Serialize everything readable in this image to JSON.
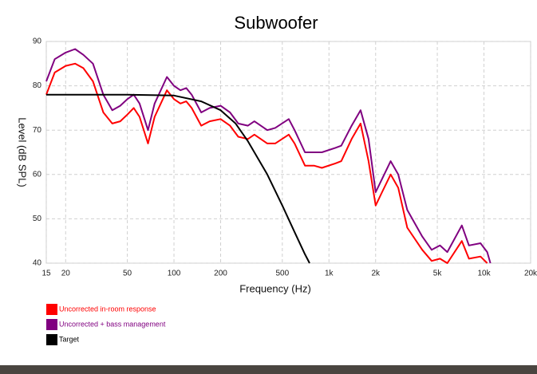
{
  "chart_data": {
    "type": "line",
    "title": "Subwoofer",
    "x_label": "Frequency (Hz)",
    "y_label": "Level (dB SPL)",
    "log_x": true,
    "grid": true,
    "xlim": [
      15,
      20000
    ],
    "ylim": [
      40,
      90
    ],
    "xticks": [
      15,
      20,
      50,
      100,
      200,
      500,
      {
        "value": 1000,
        "label": "1k"
      },
      {
        "value": 2000,
        "label": "2k"
      },
      {
        "value": 5000,
        "label": "5k"
      },
      {
        "value": 10000,
        "label": "10k"
      },
      {
        "value": 20000,
        "label": "20k"
      }
    ],
    "yticks": [
      40,
      50,
      60,
      70,
      80,
      90
    ],
    "series": [
      {
        "name": "Uncorrected in-room response",
        "color": "#ff0000",
        "x": [
          15,
          17,
          20,
          23,
          26,
          30,
          35,
          40,
          45,
          50,
          55,
          60,
          68,
          75,
          90,
          100,
          110,
          120,
          130,
          150,
          170,
          200,
          230,
          260,
          300,
          330,
          400,
          450,
          550,
          600,
          700,
          800,
          900,
          1100,
          1200,
          1400,
          1600,
          1800,
          2000,
          2200,
          2500,
          2800,
          3200,
          4000,
          4600,
          5200,
          5800,
          7200,
          8000,
          9500,
          10500
        ],
        "values": [
          78,
          83,
          84.5,
          85,
          84,
          81,
          74,
          71.5,
          72,
          73.5,
          75,
          73,
          67,
          73,
          79,
          77,
          76,
          76.5,
          75,
          71,
          72,
          72.5,
          71,
          68.5,
          68,
          69,
          67,
          67,
          69,
          67,
          62,
          62,
          61.5,
          62.5,
          63,
          68,
          71.5,
          63,
          53,
          56,
          60,
          57,
          48,
          43,
          40.5,
          41,
          40,
          45,
          41,
          41.5,
          40
        ]
      },
      {
        "name": "Uncorrected + bass management",
        "color": "#800080",
        "x": [
          15,
          17,
          20,
          23,
          26,
          30,
          35,
          40,
          45,
          50,
          55,
          60,
          68,
          75,
          90,
          100,
          110,
          120,
          130,
          150,
          170,
          200,
          230,
          260,
          300,
          330,
          400,
          450,
          550,
          600,
          700,
          800,
          900,
          1100,
          1200,
          1400,
          1600,
          1800,
          2000,
          2200,
          2500,
          2800,
          3200,
          4000,
          4600,
          5200,
          5800,
          7200,
          8000,
          9500,
          10500,
          11000
        ],
        "values": [
          81,
          86,
          87.5,
          88.3,
          87,
          85,
          78,
          74.5,
          75.5,
          77,
          78,
          76,
          70,
          76,
          82,
          80,
          79,
          79.5,
          78,
          74,
          75,
          75.5,
          74,
          71.5,
          71,
          72,
          70,
          70.5,
          72.5,
          70,
          65,
          65,
          65,
          66,
          66.5,
          71,
          74.5,
          68,
          56,
          59,
          63,
          60,
          52,
          46,
          43,
          44,
          42.5,
          48.5,
          44,
          44.5,
          42.5,
          40
        ]
      },
      {
        "name": "Target",
        "color": "#000000",
        "x": [
          15,
          50,
          100,
          150,
          200,
          250,
          300,
          400,
          500,
          600,
          700,
          750
        ],
        "values": [
          78,
          78,
          77.8,
          76.5,
          74.5,
          71.5,
          67.5,
          60,
          53,
          47,
          42,
          40
        ]
      }
    ]
  }
}
